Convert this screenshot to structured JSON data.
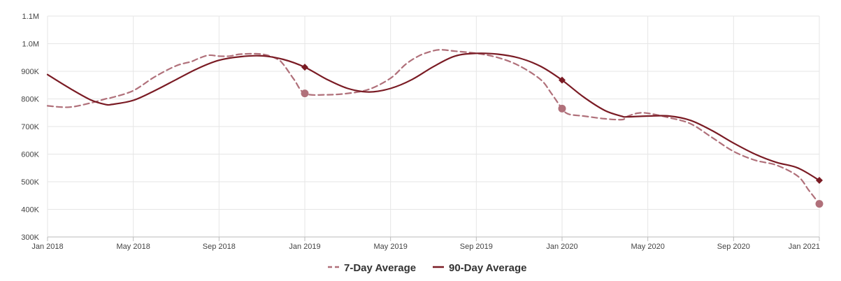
{
  "chart_data": {
    "type": "line",
    "title": "",
    "xlabel": "",
    "ylabel": "",
    "ylim": [
      300000,
      1100000
    ],
    "y_ticks": [
      {
        "value": 300000,
        "label": "300K"
      },
      {
        "value": 400000,
        "label": "400K"
      },
      {
        "value": 500000,
        "label": "500K"
      },
      {
        "value": 600000,
        "label": "600K"
      },
      {
        "value": 700000,
        "label": "700K"
      },
      {
        "value": 800000,
        "label": "800K"
      },
      {
        "value": 900000,
        "label": "900K"
      },
      {
        "value": 1000000,
        "label": "1.0M"
      },
      {
        "value": 1100000,
        "label": "1.1M"
      }
    ],
    "x_unit": "months since Jan 2018",
    "xlim": [
      0,
      36
    ],
    "x_ticks": [
      {
        "value": 0,
        "label": "Jan 2018"
      },
      {
        "value": 4,
        "label": "May 2018"
      },
      {
        "value": 8,
        "label": "Sep 2018"
      },
      {
        "value": 12,
        "label": "Jan 2019"
      },
      {
        "value": 16,
        "label": "May 2019"
      },
      {
        "value": 20,
        "label": "Sep 2019"
      },
      {
        "value": 24,
        "label": "Jan 2020"
      },
      {
        "value": 28,
        "label": "May 2020"
      },
      {
        "value": 32,
        "label": "Sep 2020"
      },
      {
        "value": 36,
        "label": "Jan 2021"
      }
    ],
    "legend_position": "bottom-center",
    "series": [
      {
        "name": "7-Day Average",
        "color": "#b0707a",
        "style": "dashed",
        "marker": "circle",
        "points": [
          [
            0,
            775000
          ],
          [
            1,
            770000
          ],
          [
            2,
            785000
          ],
          [
            2.7,
            800000
          ],
          [
            3,
            805000
          ],
          [
            4,
            830000
          ],
          [
            5,
            880000
          ],
          [
            6,
            920000
          ],
          [
            6.7,
            935000
          ],
          [
            7,
            945000
          ],
          [
            7.5,
            958000
          ],
          [
            8,
            955000
          ],
          [
            8.5,
            955000
          ],
          [
            9,
            962000
          ],
          [
            10,
            962000
          ],
          [
            10.7,
            945000
          ],
          [
            11,
            925000
          ],
          [
            11.5,
            870000
          ],
          [
            12,
            820000
          ],
          [
            13,
            815000
          ],
          [
            14,
            820000
          ],
          [
            15,
            835000
          ],
          [
            16,
            875000
          ],
          [
            16.7,
            925000
          ],
          [
            17.3,
            955000
          ],
          [
            17.8,
            970000
          ],
          [
            18.3,
            978000
          ],
          [
            19,
            973000
          ],
          [
            20,
            965000
          ],
          [
            21,
            950000
          ],
          [
            22,
            920000
          ],
          [
            23,
            870000
          ],
          [
            23.5,
            820000
          ],
          [
            24,
            765000
          ],
          [
            24.3,
            745000
          ],
          [
            25,
            738000
          ],
          [
            26,
            728000
          ],
          [
            26.8,
            725000
          ],
          [
            27,
            735000
          ],
          [
            27.5,
            748000
          ],
          [
            28,
            748000
          ],
          [
            29,
            732000
          ],
          [
            30,
            710000
          ],
          [
            31,
            660000
          ],
          [
            32,
            610000
          ],
          [
            33,
            578000
          ],
          [
            34,
            560000
          ],
          [
            35,
            520000
          ],
          [
            35.5,
            470000
          ],
          [
            36,
            420000
          ]
        ],
        "markers": [
          [
            12,
            820000
          ],
          [
            24,
            765000
          ],
          [
            36,
            420000
          ]
        ]
      },
      {
        "name": "90-Day Average",
        "color": "#7a1b24",
        "style": "solid",
        "marker": "diamond",
        "points": [
          [
            0,
            888000
          ],
          [
            1,
            840000
          ],
          [
            2,
            797000
          ],
          [
            2.7,
            780000
          ],
          [
            3,
            780000
          ],
          [
            4,
            795000
          ],
          [
            5,
            830000
          ],
          [
            6,
            870000
          ],
          [
            7,
            910000
          ],
          [
            8,
            940000
          ],
          [
            9,
            953000
          ],
          [
            10,
            956000
          ],
          [
            11,
            943000
          ],
          [
            12,
            915000
          ],
          [
            13,
            872000
          ],
          [
            14,
            838000
          ],
          [
            15,
            825000
          ],
          [
            16,
            838000
          ],
          [
            17,
            870000
          ],
          [
            18,
            917000
          ],
          [
            19,
            955000
          ],
          [
            20,
            965000
          ],
          [
            21,
            962000
          ],
          [
            22,
            948000
          ],
          [
            23,
            918000
          ],
          [
            24,
            868000
          ],
          [
            25,
            807000
          ],
          [
            26,
            758000
          ],
          [
            26.8,
            737000
          ],
          [
            27,
            735000
          ],
          [
            28,
            738000
          ],
          [
            29,
            738000
          ],
          [
            30,
            722000
          ],
          [
            31,
            685000
          ],
          [
            32,
            640000
          ],
          [
            33,
            600000
          ],
          [
            34,
            570000
          ],
          [
            35,
            550000
          ],
          [
            36,
            505000
          ]
        ],
        "markers": [
          [
            12,
            915000
          ],
          [
            24,
            868000
          ],
          [
            36,
            505000
          ]
        ]
      }
    ]
  }
}
